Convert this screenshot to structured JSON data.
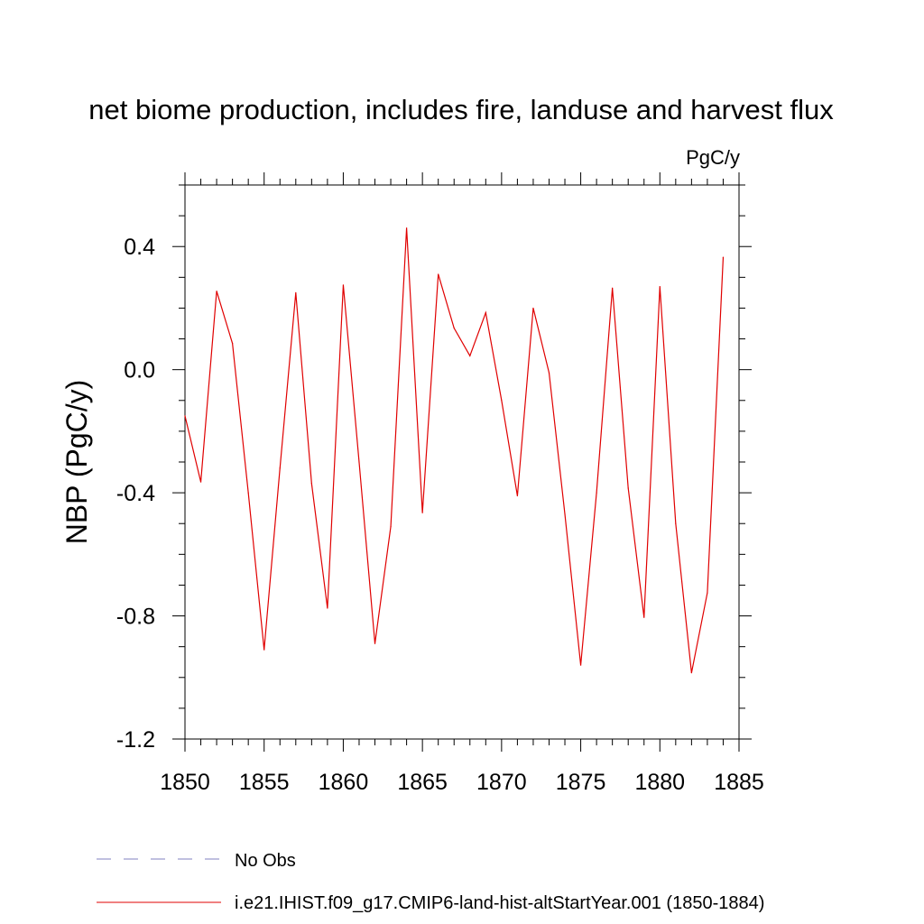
{
  "chart_data": {
    "type": "line",
    "title": "net biome production, includes fire, landuse and harvest flux",
    "units_label": "PgC/y",
    "ylabel": "NBP  (PgC/y)",
    "xlabel": "",
    "xlim": [
      1850,
      1885
    ],
    "ylim": [
      -1.2,
      0.6
    ],
    "x_ticks": [
      1850,
      1855,
      1860,
      1865,
      1870,
      1875,
      1880,
      1885
    ],
    "x_tick_labels": [
      "1850",
      "1855",
      "1860",
      "1865",
      "1870",
      "1875",
      "1880",
      "1885"
    ],
    "y_ticks": [
      -1.2,
      -0.8,
      -0.4,
      0.0,
      0.4
    ],
    "y_tick_labels": [
      "-1.2",
      "-0.8",
      "-0.4",
      "0.0",
      "0.4"
    ],
    "grid": false,
    "legend_placement": "bottom",
    "legend": [
      {
        "label": "No Obs",
        "color": "#8080c0",
        "style": "dashed"
      },
      {
        "label": "i.e21.IHIST.f09_g17.CMIP6-land-hist-altStartYear.001 (1850-1884)",
        "color": "#e00000",
        "style": "solid"
      }
    ],
    "series": [
      {
        "name": "i.e21.IHIST.f09_g17.CMIP6-land-hist-altStartYear.001 (1850-1884)",
        "color": "#e00000",
        "x": [
          1850,
          1851,
          1852,
          1853,
          1854,
          1855,
          1856,
          1857,
          1858,
          1859,
          1860,
          1861,
          1862,
          1863,
          1864,
          1865,
          1866,
          1867,
          1868,
          1869,
          1870,
          1871,
          1872,
          1873,
          1874,
          1875,
          1876,
          1877,
          1878,
          1879,
          1880,
          1881,
          1882,
          1883,
          1884
        ],
        "values": [
          -0.15,
          -0.365,
          0.255,
          0.085,
          -0.4,
          -0.91,
          -0.32,
          0.25,
          -0.37,
          -0.775,
          0.275,
          -0.3,
          -0.89,
          -0.51,
          0.46,
          -0.465,
          0.31,
          0.135,
          0.045,
          0.185,
          -0.1,
          -0.41,
          0.2,
          -0.01,
          -0.47,
          -0.96,
          -0.4,
          0.265,
          -0.385,
          -0.805,
          0.27,
          -0.5,
          -0.985,
          -0.725,
          0.365
        ]
      }
    ]
  }
}
